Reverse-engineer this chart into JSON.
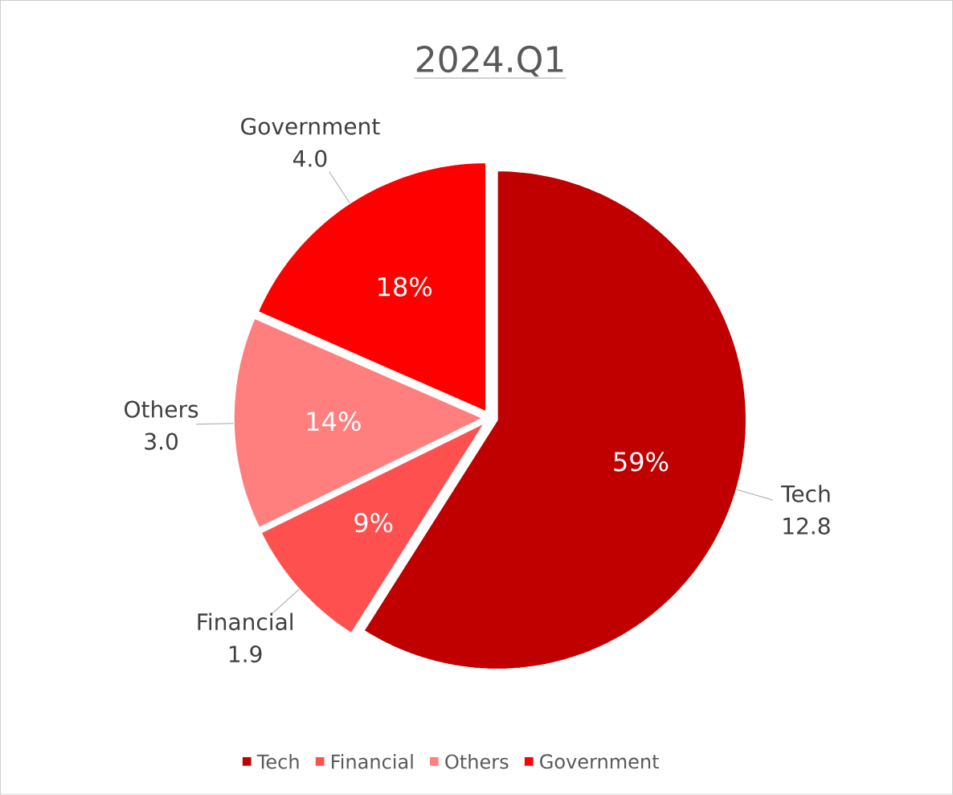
{
  "chart_data": {
    "type": "pie",
    "title": "2024.Q1",
    "categories": [
      "Tech",
      "Financial",
      "Others",
      "Government"
    ],
    "values": [
      12.8,
      1.9,
      3.0,
      4.0
    ],
    "value_labels": [
      "12.8",
      "1.9",
      "3.0",
      "4.0"
    ],
    "colors": [
      "#c00000",
      "#ff5050",
      "#ff7f7f",
      "#ff0000"
    ],
    "annotations": [
      "59%",
      "9%",
      "14%",
      "18%"
    ],
    "legend": "bottom"
  }
}
